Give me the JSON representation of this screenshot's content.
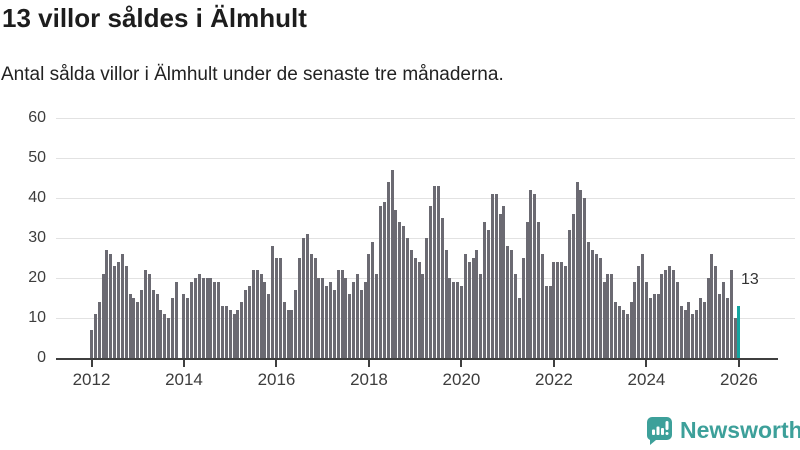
{
  "header": {
    "title": "13 villor såldes i Älmhult",
    "subtitle": "Antal sålda villor i Älmhult under de senaste tre månaderna."
  },
  "chart_data": {
    "type": "bar",
    "title": "13 villor såldes i Älmhult",
    "subtitle": "Antal sålda villor i Älmhult under de senaste tre månaderna.",
    "x_start": "2012-01",
    "x_interval": "month",
    "values": [
      7,
      11,
      14,
      21,
      27,
      26,
      23,
      24,
      26,
      23,
      16,
      15,
      14,
      17,
      22,
      21,
      17,
      16,
      12,
      11,
      10,
      15,
      19,
      0,
      16,
      15,
      19,
      20,
      21,
      20,
      20,
      20,
      19,
      19,
      13,
      13,
      12,
      11,
      12,
      14,
      17,
      18,
      22,
      22,
      21,
      19,
      16,
      28,
      25,
      25,
      14,
      12,
      12,
      17,
      25,
      30,
      31,
      26,
      25,
      20,
      20,
      18,
      19,
      17,
      22,
      22,
      20,
      16,
      19,
      21,
      17,
      19,
      26,
      29,
      21,
      38,
      39,
      44,
      47,
      37,
      34,
      33,
      30,
      27,
      25,
      24,
      21,
      30,
      38,
      43,
      43,
      35,
      27,
      20,
      19,
      19,
      18,
      26,
      24,
      25,
      27,
      21,
      34,
      32,
      41,
      41,
      36,
      38,
      28,
      27,
      21,
      15,
      25,
      34,
      42,
      41,
      34,
      26,
      18,
      18,
      24,
      24,
      24,
      23,
      32,
      36,
      44,
      42,
      40,
      29,
      27,
      26,
      25,
      19,
      21,
      21,
      14,
      13,
      12,
      11,
      14,
      19,
      23,
      26,
      19,
      15,
      16,
      16,
      21,
      22,
      23,
      22,
      19,
      13,
      12,
      14,
      11,
      12,
      15,
      14,
      20,
      26,
      23,
      16,
      19,
      15,
      22,
      10,
      13
    ],
    "highlight_index": 168,
    "highlight_value": 13,
    "annotation_label": "13",
    "ylim": [
      0,
      60
    ],
    "y_ticks": [
      0,
      10,
      20,
      30,
      40,
      50,
      60
    ],
    "x_tick_labels": [
      "2012",
      "2014",
      "2016",
      "2018",
      "2020",
      "2022",
      "2024",
      "2026"
    ],
    "x_tick_start_year": 2012,
    "grid": true,
    "legend": "none",
    "bar_color": "#6b6a72",
    "highlight_color": "#13a6a1"
  },
  "footer": {
    "brand": "Newsworthy",
    "brand_color": "#3da09a",
    "logo_icon": "bar-chart-speech-bubble-icon"
  }
}
